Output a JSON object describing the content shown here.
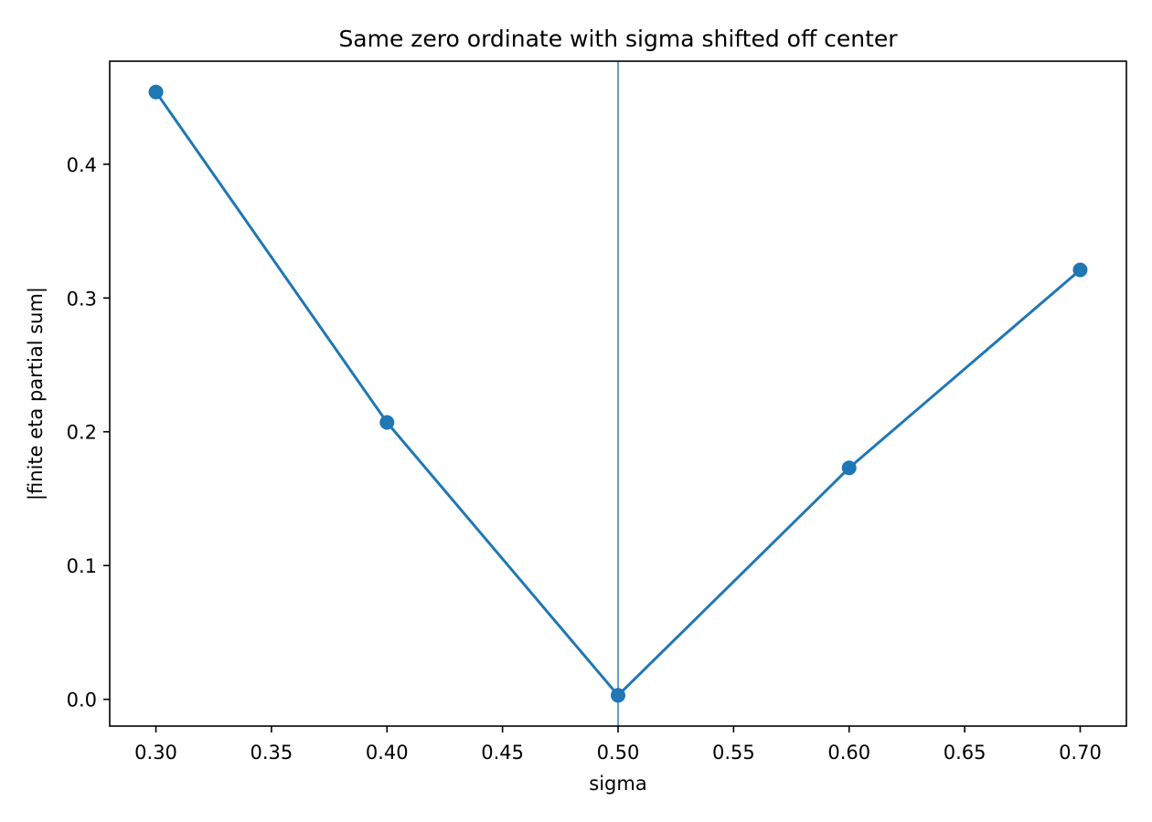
{
  "chart_data": {
    "type": "line",
    "title": "Same zero ordinate with sigma shifted off center",
    "xlabel": "sigma",
    "ylabel": "|finite eta partial sum|",
    "xlim": [
      0.28,
      0.72
    ],
    "ylim": [
      -0.02,
      0.477
    ],
    "xticks": [
      0.3,
      0.35,
      0.4,
      0.45,
      0.5,
      0.55,
      0.6,
      0.65,
      0.7
    ],
    "xtick_labels": [
      "0.30",
      "0.35",
      "0.40",
      "0.45",
      "0.50",
      "0.55",
      "0.60",
      "0.65",
      "0.70"
    ],
    "yticks": [
      0.0,
      0.1,
      0.2,
      0.3,
      0.4
    ],
    "ytick_labels": [
      "0.0",
      "0.1",
      "0.2",
      "0.3",
      "0.4"
    ],
    "grid": false,
    "reference_line": {
      "orientation": "vertical",
      "x": 0.5
    },
    "series": [
      {
        "x": [
          0.3,
          0.4,
          0.5,
          0.6,
          0.7
        ],
        "y": [
          0.454,
          0.207,
          0.003,
          0.173,
          0.321
        ],
        "marker": "circle"
      }
    ],
    "colors": {
      "line": "#1f77b4",
      "axes": "#000000"
    }
  }
}
